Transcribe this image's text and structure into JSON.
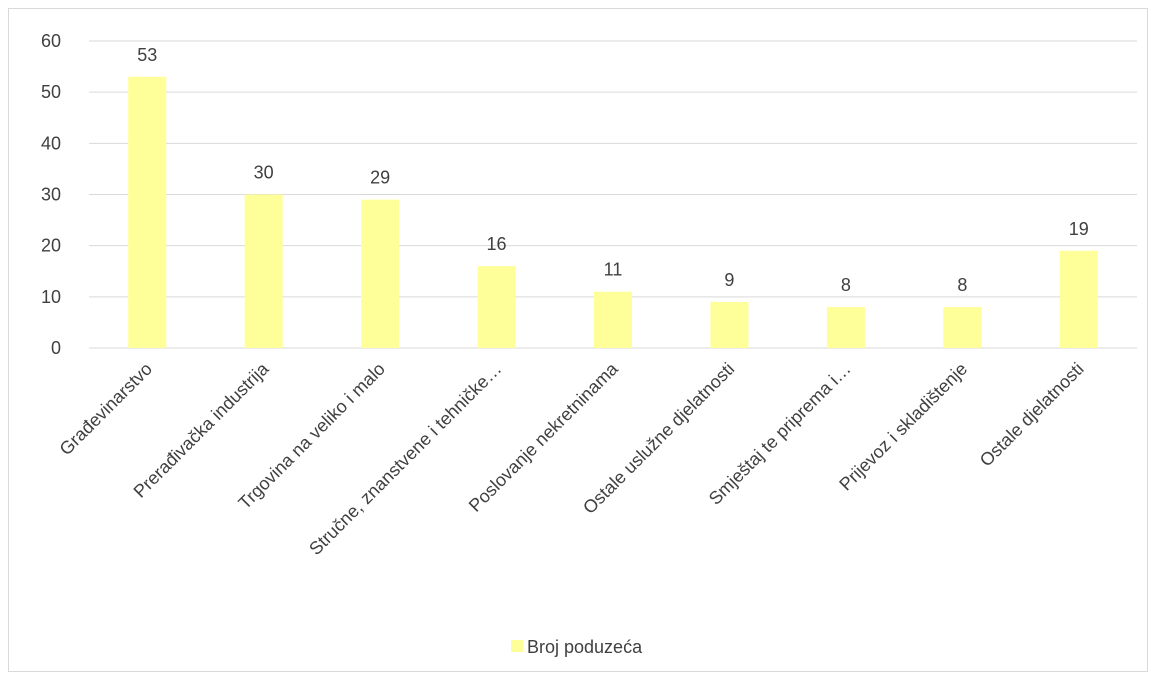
{
  "chart_data": {
    "type": "bar",
    "categories": [
      "Građevinarstvo",
      "Prerađivačka industrija",
      "Trgovina na veliko i malo",
      "Stručne, znanstvene i tehničke…",
      "Poslovanje nekretninama",
      "Ostale uslužne djelatnosti",
      "Smještaj te priprema i…",
      "Prijevoz i skladištenje",
      "Ostale djelatnosti"
    ],
    "series": [
      {
        "name": "Broj poduzeća",
        "values": [
          53,
          30,
          29,
          16,
          11,
          9,
          8,
          8,
          19
        ]
      }
    ],
    "ylim": [
      0,
      60
    ],
    "yticks": [
      "0",
      "10",
      "20",
      "30",
      "40",
      "50",
      "60"
    ],
    "grid": true,
    "legend_position": "bottom",
    "bar_color": "#ffff99",
    "grid_color": "#d9d9d9",
    "text_color": "#404040"
  }
}
